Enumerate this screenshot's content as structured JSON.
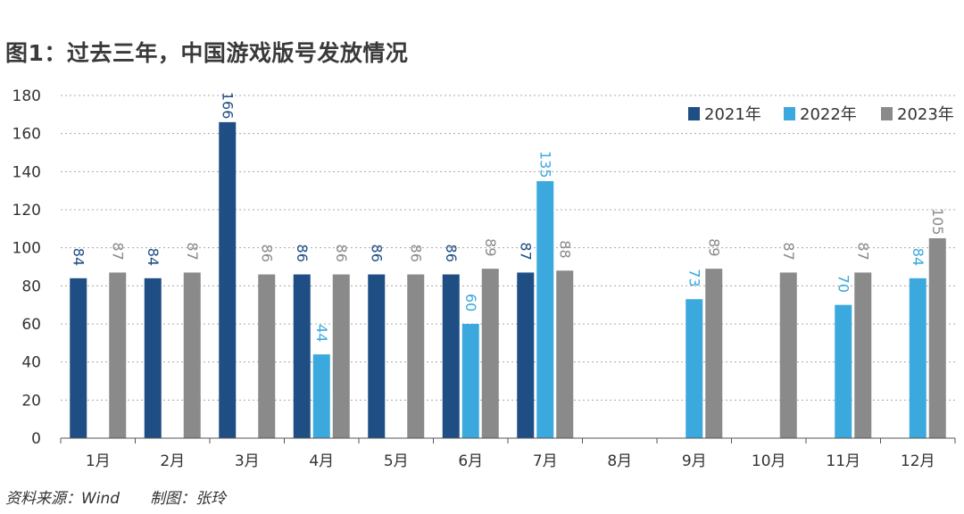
{
  "title": "图1：过去三年，中国游戏版号发放情况",
  "footer": {
    "source": "资料来源：Wind",
    "author": "制图：张玲"
  },
  "chart_data": {
    "type": "bar",
    "categories": [
      "1月",
      "2月",
      "3月",
      "4月",
      "5月",
      "6月",
      "7月",
      "8月",
      "9月",
      "10月",
      "11月",
      "12月"
    ],
    "series": [
      {
        "name": "2021年",
        "color": "#1f4e85",
        "values": [
          84,
          84,
          166,
          86,
          86,
          86,
          87,
          null,
          null,
          null,
          null,
          null
        ]
      },
      {
        "name": "2022年",
        "color": "#3ba9dd",
        "values": [
          null,
          null,
          null,
          44,
          null,
          60,
          135,
          null,
          73,
          null,
          70,
          84
        ]
      },
      {
        "name": "2023年",
        "color": "#8a8a8a",
        "values": [
          87,
          87,
          86,
          86,
          86,
          89,
          88,
          null,
          89,
          87,
          87,
          105
        ]
      }
    ],
    "yticks": [
      0,
      20,
      40,
      60,
      80,
      100,
      120,
      140,
      160,
      180
    ],
    "ylim": [
      0,
      180
    ],
    "grid": true,
    "legend": "top-right",
    "data_labels": true
  }
}
